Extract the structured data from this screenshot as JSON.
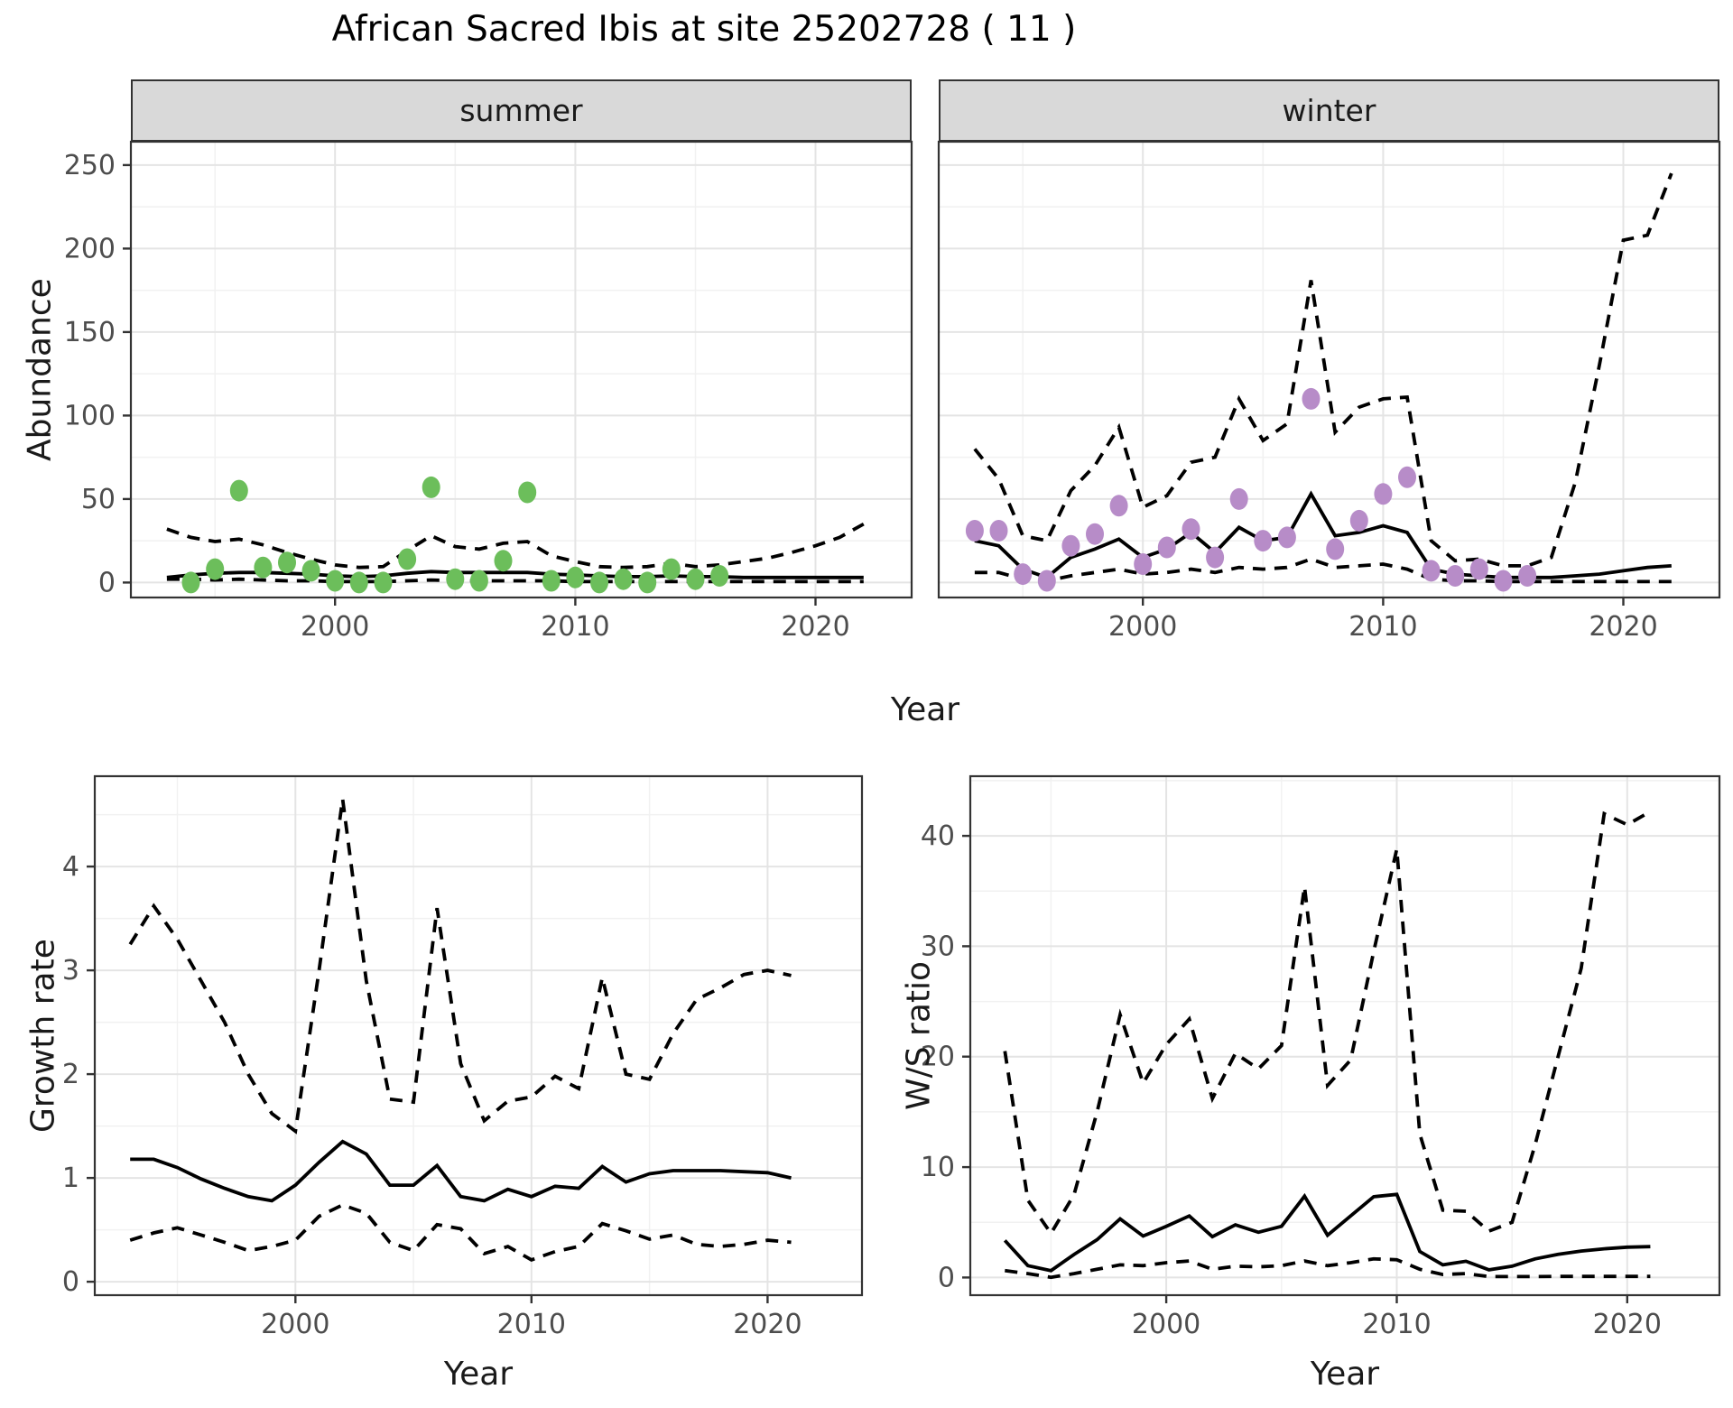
{
  "title": "African Sacred Ibis at site 25202728 ( 11 )",
  "facets": {
    "summer": "summer",
    "winter": "winter"
  },
  "axes": {
    "abundance_label": "Abundance",
    "year_label": "Year",
    "growth_label": "Growth rate",
    "ws_label": "W/S ratio"
  },
  "colors": {
    "summer_point": "#6CBE5B",
    "winter_point": "#B78CC8",
    "line": "#000000",
    "strip_bg": "#D9D9D9",
    "grid_major": "#E4E4E4",
    "grid_minor": "#F1F1F1",
    "tick_text": "#4D4D4D",
    "panel_border": "#333333"
  },
  "chart_data": [
    {
      "name": "abundance-summer",
      "type": "line+scatter",
      "panel": "summer",
      "facet_label": "summer",
      "xlabel": "Year",
      "ylabel": "Abundance",
      "xlim": [
        1991.5,
        2024
      ],
      "ylim": [
        -9,
        264
      ],
      "x_ticks": [
        2000,
        2010,
        2020
      ],
      "x_minor": [
        1995,
        2005,
        2015
      ],
      "y_ticks": [
        0,
        50,
        100,
        150,
        200,
        250
      ],
      "y_minor": [
        25,
        75,
        125,
        175,
        225
      ],
      "show_y_labels": true,
      "points": {
        "start_year": 1994,
        "color_key": "summer_point",
        "values": [
          0,
          8,
          55,
          9,
          12,
          7,
          1,
          0,
          0,
          14,
          57,
          2,
          1,
          13,
          54,
          1,
          3,
          0,
          2,
          0,
          8,
          2,
          4
        ]
      },
      "fit": {
        "start_year": 1993,
        "values": [
          3,
          4.5,
          5.5,
          6,
          6,
          5.5,
          5,
          4,
          3.5,
          4,
          5.5,
          6.5,
          6,
          6,
          6,
          6,
          5,
          4.5,
          4,
          3.5,
          3.5,
          4,
          3.5,
          3.5,
          3,
          3,
          3,
          3,
          3,
          3
        ]
      },
      "upper": {
        "start_year": 1993,
        "values": [
          32,
          27,
          24.5,
          26,
          22.5,
          18,
          14,
          10.5,
          9,
          9.5,
          19,
          28,
          21.5,
          20,
          23.5,
          24.5,
          16,
          12.5,
          9.5,
          9,
          9.5,
          11.5,
          9.5,
          10.5,
          12.5,
          14.5,
          18,
          22,
          27,
          35
        ]
      },
      "lower": {
        "start_year": 1993,
        "values": [
          2,
          2,
          1.5,
          2,
          1.5,
          1,
          1,
          0.5,
          0.5,
          0.5,
          1,
          1.5,
          1,
          1,
          1,
          1,
          1,
          0.5,
          0.5,
          0.5,
          0.5,
          0.5,
          0.5,
          0.5,
          0.5,
          0.5,
          0.5,
          0.5,
          0.5,
          0.5
        ]
      }
    },
    {
      "name": "abundance-winter",
      "type": "line+scatter",
      "panel": "winter",
      "facet_label": "winter",
      "xlabel": "Year",
      "ylabel": "Abundance",
      "xlim": [
        1991.5,
        2024
      ],
      "ylim": [
        -9,
        264
      ],
      "x_ticks": [
        2000,
        2010,
        2020
      ],
      "x_minor": [
        1995,
        2005,
        2015
      ],
      "y_ticks": [
        0,
        50,
        100,
        150,
        200,
        250
      ],
      "y_minor": [
        25,
        75,
        125,
        175,
        225
      ],
      "show_y_labels": false,
      "points": {
        "start_year": 1993,
        "color_key": "winter_point",
        "values": [
          31,
          31,
          5,
          1,
          22,
          29,
          46,
          11,
          21,
          32,
          15,
          50,
          25,
          27,
          110,
          20,
          37,
          53,
          63,
          7,
          4,
          8,
          1,
          4
        ]
      },
      "fit": {
        "start_year": 1993,
        "values": [
          25,
          22,
          8,
          3,
          15,
          20,
          26,
          15,
          20,
          30,
          18,
          33,
          25,
          27,
          53,
          28,
          30,
          34,
          30,
          8,
          5,
          4,
          3,
          3,
          3,
          4,
          5,
          7,
          9,
          10
        ]
      },
      "upper": {
        "start_year": 1993,
        "values": [
          80,
          62,
          28,
          25,
          55,
          70,
          93,
          45,
          52,
          72,
          75,
          110,
          85,
          95,
          181,
          90,
          105,
          110,
          111,
          25,
          13,
          14,
          10,
          10,
          15,
          60,
          130,
          205,
          208,
          245
        ]
      },
      "lower": {
        "start_year": 1993,
        "values": [
          6,
          6,
          2,
          1,
          4,
          6,
          8,
          5,
          6,
          8,
          6,
          9,
          8,
          9,
          14,
          9,
          10,
          11,
          8,
          2,
          1,
          1,
          0.5,
          0.5,
          0.5,
          0.5,
          0.5,
          0.5,
          0.5,
          0.5
        ]
      }
    },
    {
      "name": "growth-rate",
      "type": "line",
      "panel": "growth",
      "xlabel": "Year",
      "ylabel": "Growth rate",
      "xlim": [
        1991.5,
        2024
      ],
      "ylim": [
        -0.13,
        4.87
      ],
      "x_ticks": [
        2000,
        2010,
        2020
      ],
      "x_minor": [
        1995,
        2005,
        2015
      ],
      "y_ticks": [
        0,
        1,
        2,
        3,
        4
      ],
      "y_minor": [
        0.5,
        1.5,
        2.5,
        3.5,
        4.5
      ],
      "show_y_labels": true,
      "fit": {
        "start_year": 1993,
        "values": [
          1.18,
          1.18,
          1.1,
          0.99,
          0.9,
          0.82,
          0.78,
          0.93,
          1.15,
          1.35,
          1.23,
          0.93,
          0.93,
          1.12,
          0.82,
          0.78,
          0.89,
          0.82,
          0.92,
          0.9,
          1.11,
          0.96,
          1.04,
          1.07,
          1.07,
          1.07,
          1.06,
          1.05,
          1.0
        ]
      },
      "upper": {
        "start_year": 1993,
        "values": [
          3.25,
          3.62,
          3.3,
          2.9,
          2.5,
          2.0,
          1.62,
          1.45,
          3.0,
          4.65,
          2.9,
          1.76,
          1.73,
          3.6,
          2.1,
          1.55,
          1.74,
          1.78,
          1.98,
          1.86,
          2.93,
          2.0,
          1.95,
          2.39,
          2.72,
          2.83,
          2.96,
          3.0,
          2.95
        ]
      },
      "lower": {
        "start_year": 1993,
        "values": [
          0.4,
          0.47,
          0.52,
          0.45,
          0.38,
          0.3,
          0.34,
          0.4,
          0.63,
          0.74,
          0.66,
          0.38,
          0.3,
          0.55,
          0.51,
          0.27,
          0.34,
          0.21,
          0.29,
          0.34,
          0.56,
          0.49,
          0.41,
          0.45,
          0.36,
          0.34,
          0.36,
          0.4,
          0.38
        ]
      }
    },
    {
      "name": "ws-ratio",
      "type": "line",
      "panel": "ws",
      "xlabel": "Year",
      "ylabel": "W/S ratio",
      "xlim": [
        1991.5,
        2024
      ],
      "ylim": [
        -1.6,
        45.4
      ],
      "x_ticks": [
        2000,
        2010,
        2020
      ],
      "x_minor": [
        1995,
        2005,
        2015
      ],
      "y_ticks": [
        0,
        10,
        20,
        30,
        40
      ],
      "y_minor": [
        5,
        15,
        25,
        35,
        45
      ],
      "show_y_labels": true,
      "fit": {
        "start_year": 1993,
        "values": [
          3.35,
          1.07,
          0.62,
          2.09,
          3.43,
          5.31,
          3.75,
          4.64,
          5.58,
          3.7,
          4.77,
          4.1,
          4.64,
          7.37,
          3.83,
          5.58,
          7.32,
          7.53,
          2.36,
          1.15,
          1.47,
          0.7,
          1.02,
          1.69,
          2.1,
          2.4,
          2.6,
          2.75,
          2.8
        ]
      },
      "upper": {
        "start_year": 1993,
        "values": [
          20.5,
          7.0,
          4.0,
          7.5,
          15.0,
          23.8,
          17.6,
          21.1,
          23.4,
          16.2,
          20.3,
          18.9,
          21.0,
          35.4,
          17.4,
          19.7,
          29.5,
          38.8,
          13.0,
          6.1,
          6.0,
          4.2,
          5.0,
          12.0,
          20.0,
          28.0,
          42.0,
          41.0,
          42.2
        ]
      },
      "lower": {
        "start_year": 1993,
        "values": [
          0.62,
          0.35,
          0.02,
          0.35,
          0.75,
          1.15,
          1.07,
          1.34,
          1.5,
          0.75,
          1.02,
          0.97,
          1.07,
          1.5,
          1.07,
          1.34,
          1.69,
          1.61,
          0.75,
          0.27,
          0.35,
          0.08,
          0.08,
          0.08,
          0.1,
          0.1,
          0.1,
          0.1,
          0.1
        ]
      }
    }
  ]
}
